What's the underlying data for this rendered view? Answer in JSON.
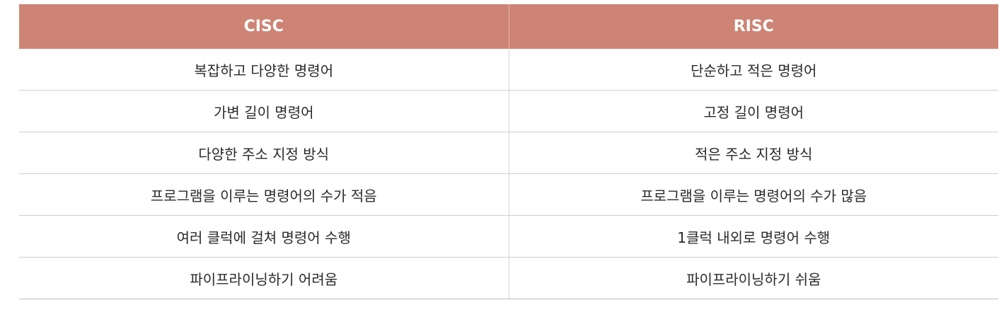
{
  "headers": [
    "CISC",
    "RISC"
  ],
  "rows": [
    [
      "복잡하고 다양한 명령어",
      "단순하고 적은 명령어"
    ],
    [
      "가변 길이 명령어",
      "고정 길이 명령어"
    ],
    [
      "다양한 주소 지정 방식",
      "적은 주소 지정 방식"
    ],
    [
      "프로그램을 이루는 명령어의 수가 적음",
      "프로그램을 이루는 명령어의 수가 많음"
    ],
    [
      "여러 클럭에 걸쳐 명령어 수행",
      "1클럭 내외로 명령어 수행"
    ],
    [
      "파이프라이닝하기 어려움",
      "파이프라이닝하기 쉬움"
    ]
  ],
  "colors": {
    "header_bg": "#cd8474",
    "header_text": "#ffffff",
    "body_text": "#2a2a2a",
    "row_divider": "#cfcfcf"
  }
}
